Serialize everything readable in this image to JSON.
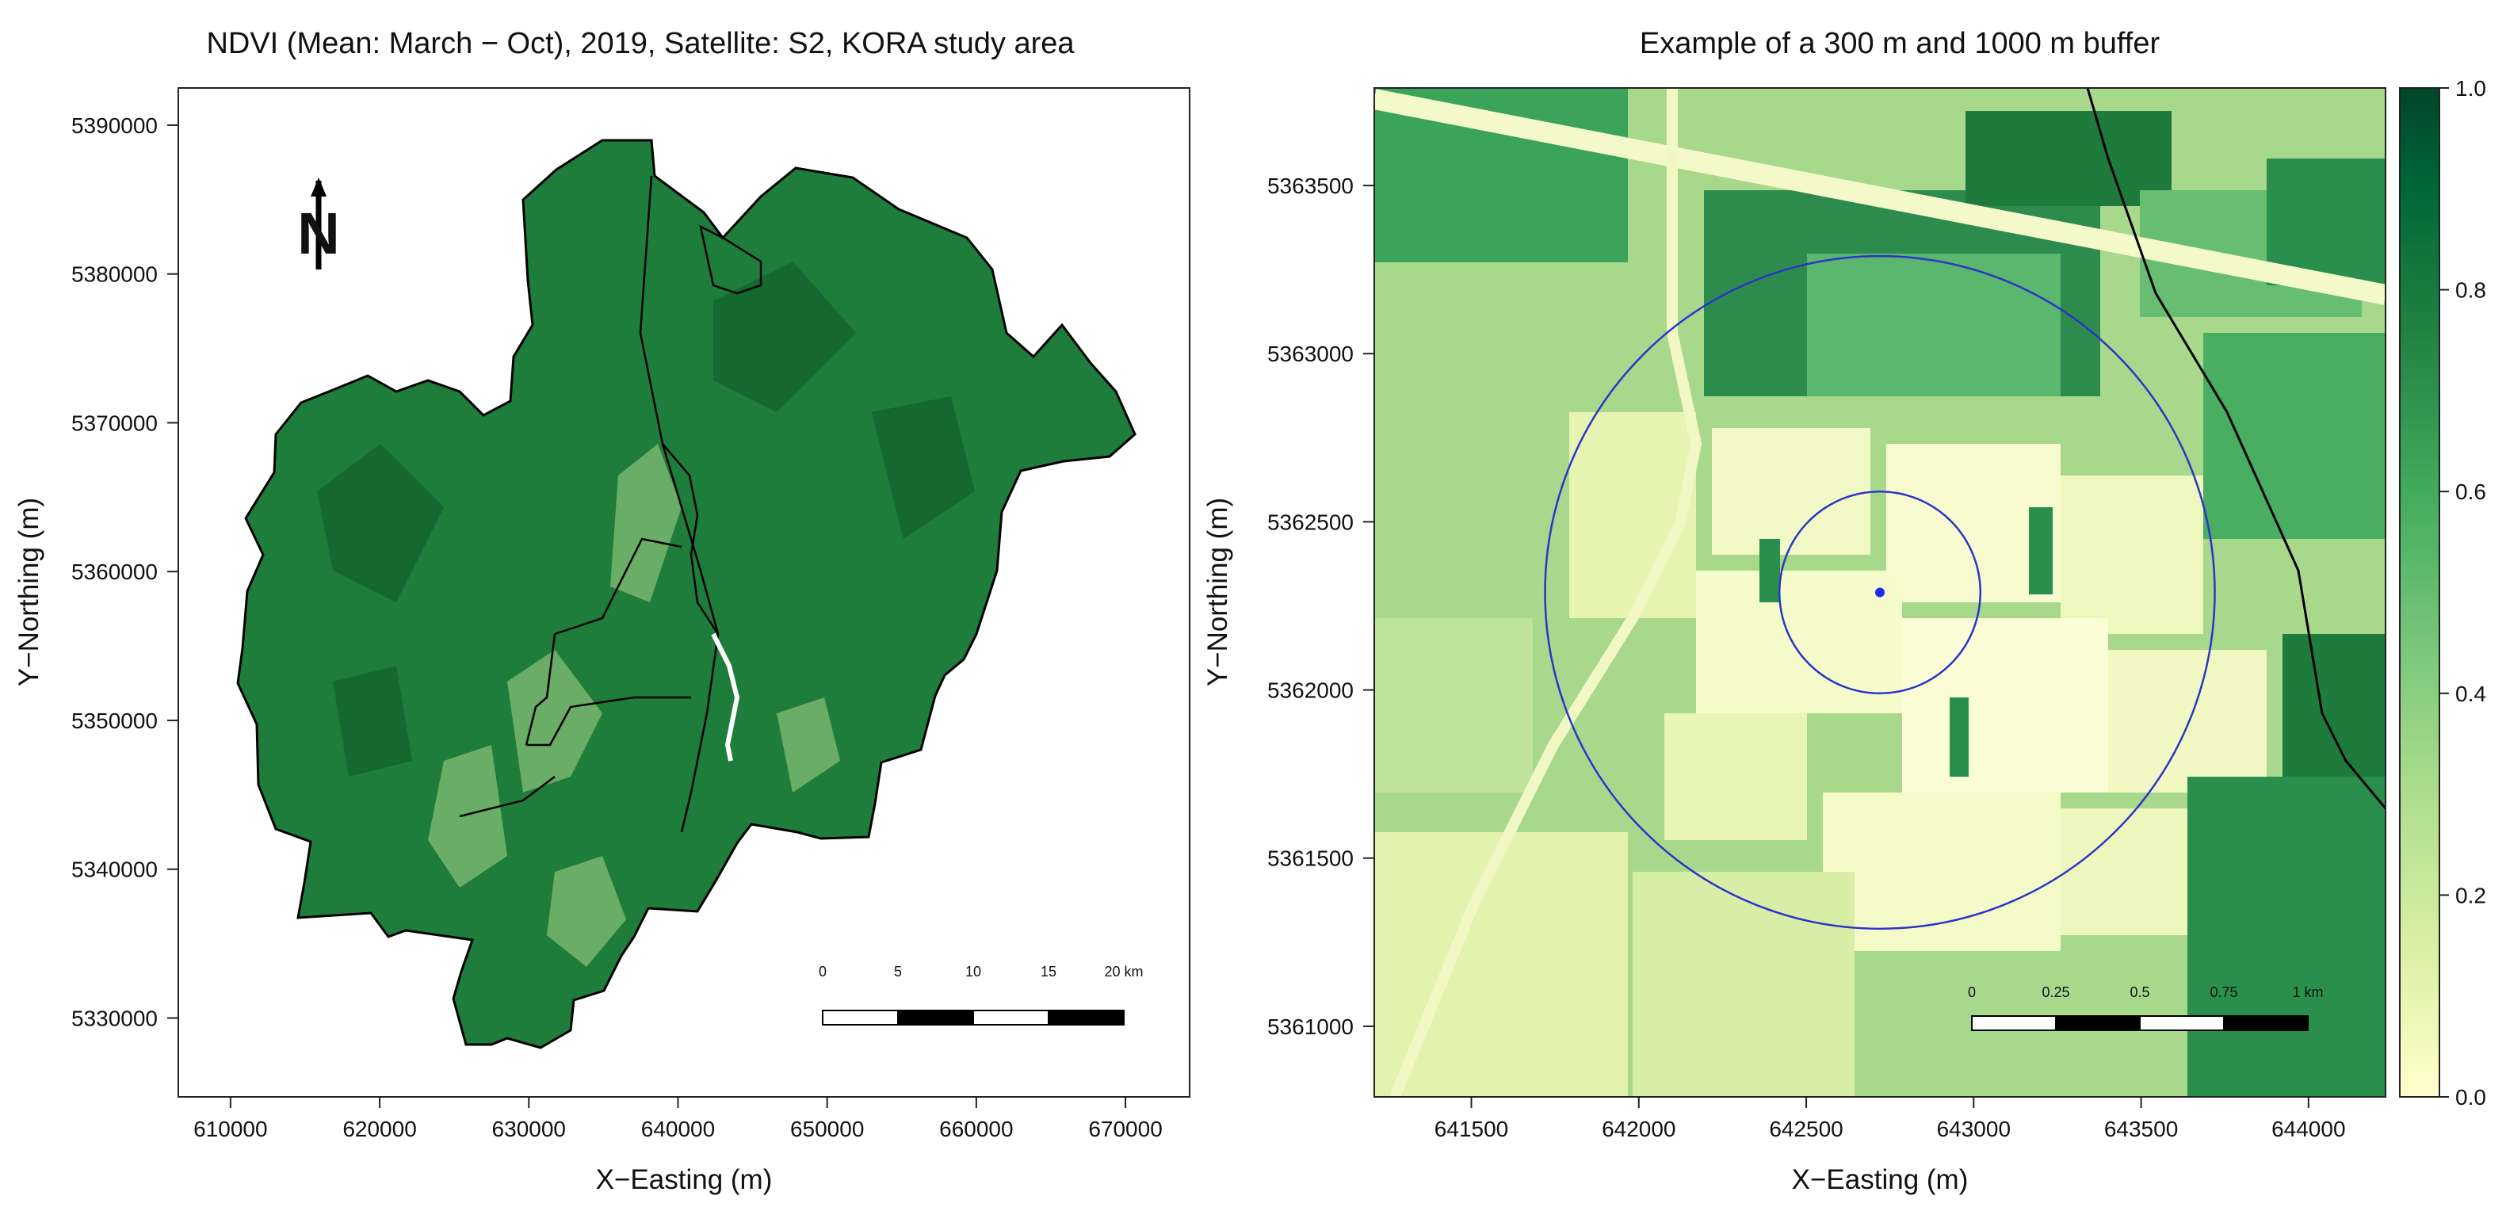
{
  "chart_data": [
    {
      "type": "heatmap",
      "title": "NDVI (Mean: March − Oct), 2019, Satellite: S2, KORA study area",
      "xlabel": "X−Easting (m)",
      "ylabel": "Y−Northing (m)",
      "xlim": [
        606500,
        674300
      ],
      "ylim": [
        5324700,
        5392500
      ],
      "x_ticks": [
        610000,
        620000,
        630000,
        640000,
        650000,
        660000,
        670000
      ],
      "y_ticks": [
        5330000,
        5340000,
        5350000,
        5360000,
        5370000,
        5380000,
        5390000
      ],
      "north_arrow": "N",
      "scale_bar": {
        "labels": [
          "0",
          "5",
          "10",
          "15",
          "20 km"
        ],
        "segments": 4
      },
      "grid": false
    },
    {
      "type": "heatmap",
      "title": "Example of a 300 m and 1000 m buffer",
      "xlabel": "X−Easting (m)",
      "ylabel": "Y−Northing (m)",
      "xlim": [
        641210,
        644230
      ],
      "ylim": [
        5360790,
        5363790
      ],
      "x_ticks": [
        641500,
        642000,
        642500,
        643000,
        643500,
        644000
      ],
      "y_ticks": [
        5361000,
        5361500,
        5362000,
        5362500,
        5363000,
        5363500
      ],
      "point": {
        "x": 642720,
        "y": 5362290
      },
      "buffers": [
        {
          "radius_m": 300,
          "color": "#2b35c8"
        },
        {
          "radius_m": 1000,
          "color": "#2b35c8"
        }
      ],
      "scale_bar": {
        "labels": [
          "0",
          "0.25",
          "0.5",
          "0.75",
          "1 km"
        ],
        "segments": 4
      },
      "colorbar": {
        "range": [
          0.0,
          1.0
        ],
        "ticks": [
          "0.0",
          "0.2",
          "0.4",
          "0.6",
          "0.8",
          "1.0"
        ],
        "colors": [
          "#ffffcc",
          "#d9f0a3",
          "#addd8e",
          "#78c679",
          "#41ab5d",
          "#238443",
          "#006837",
          "#004529"
        ]
      },
      "grid": false
    }
  ]
}
